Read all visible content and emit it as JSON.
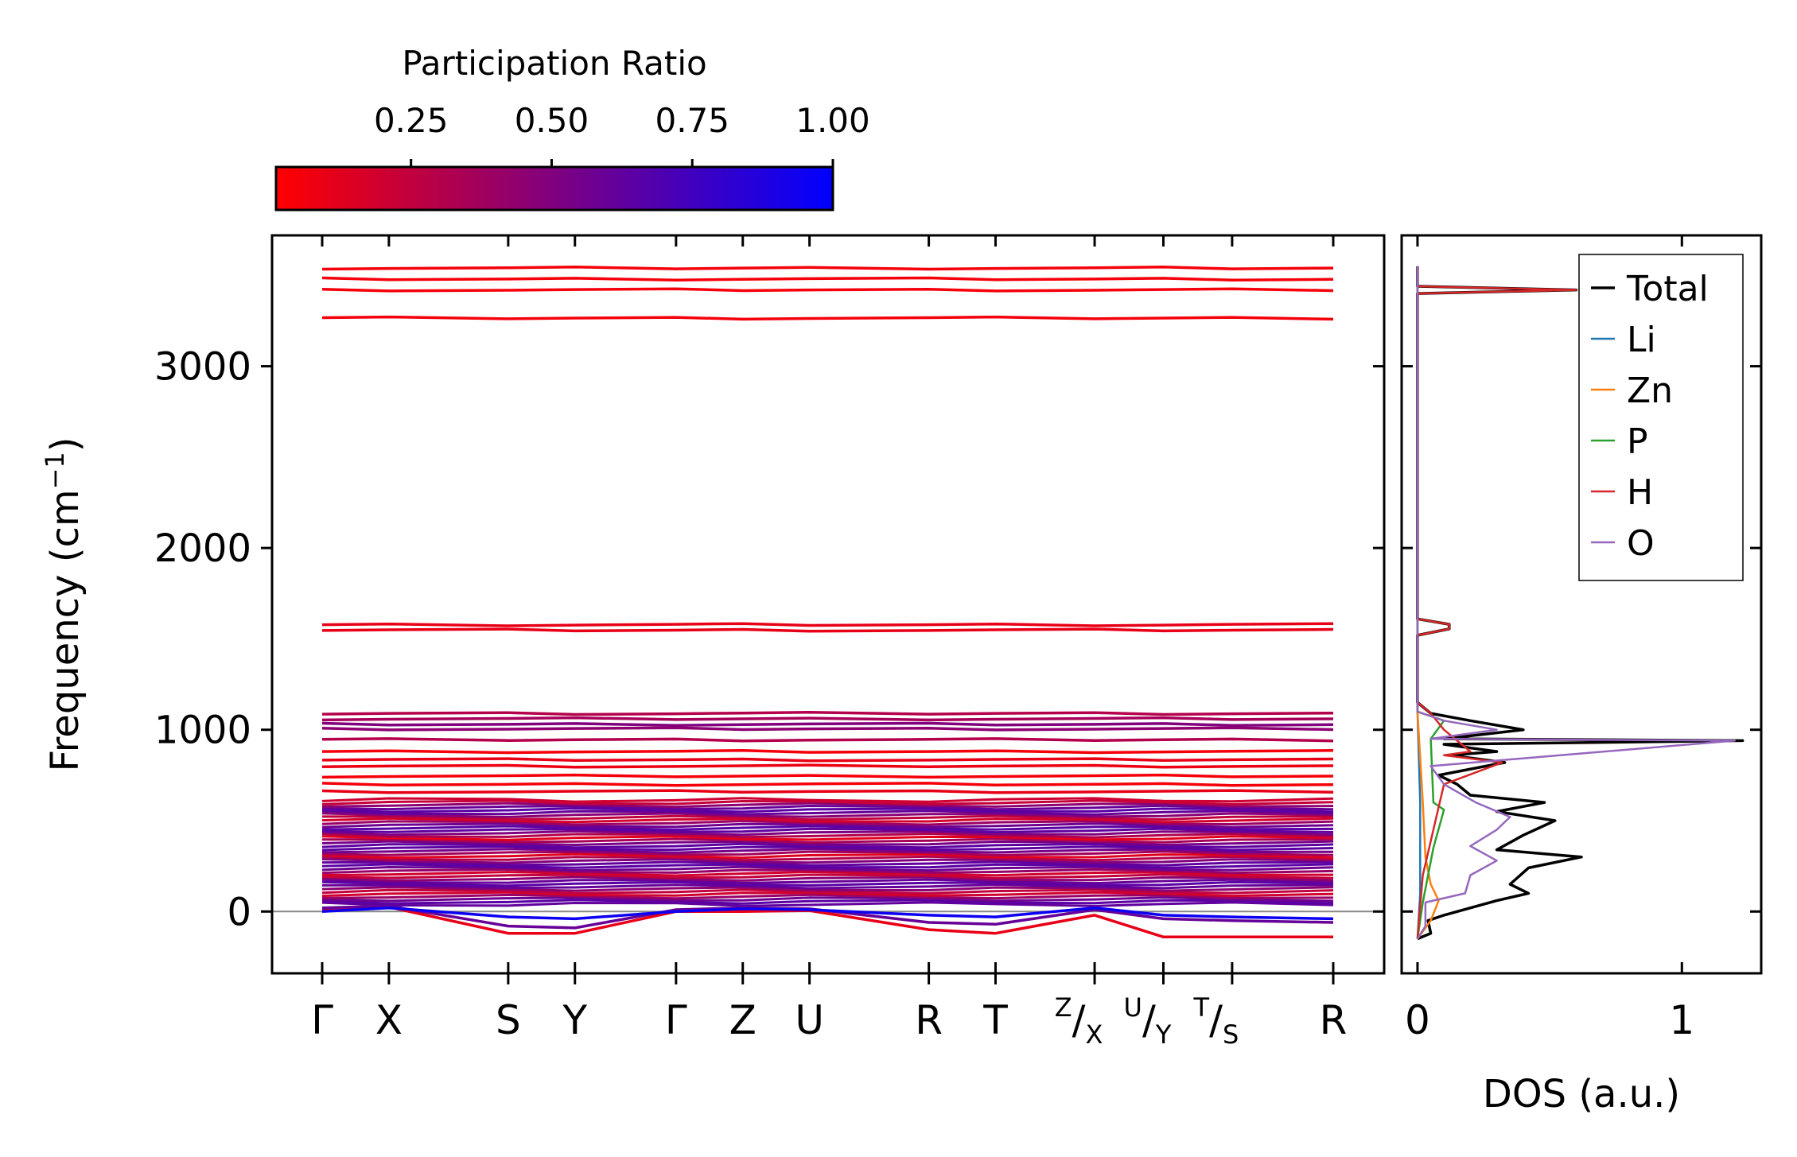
{
  "chart_data": [
    {
      "type": "line",
      "title": "",
      "colorbar": {
        "label": "Participation Ratio",
        "ticks": [
          "0.25",
          "0.50",
          "0.75",
          "1.00"
        ],
        "tick_values": [
          0.25,
          0.5,
          0.75,
          1.0
        ],
        "range": [
          0.01,
          1.0
        ],
        "colors": [
          "#ff0000",
          "#0000ff"
        ]
      },
      "ylabel": "Frequency (cm",
      "ylabel_sup": "−1",
      "ylabel_end": ")",
      "ylim": [
        -340,
        3720
      ],
      "yticks": [
        0,
        1000,
        2000,
        3000
      ],
      "ytick_labels": [
        "0",
        "1000",
        "2000",
        "3000"
      ],
      "kpath_positions": [
        0,
        0.66,
        1.84,
        2.5,
        3.5,
        4.16,
        4.82,
        6.0,
        6.66,
        7.64,
        8.32,
        9.0,
        10.0
      ],
      "kpath_labels": [
        "Γ",
        "X",
        "S",
        "Y",
        "Γ",
        "Z",
        "U",
        "R",
        "T",
        "",
        "",
        "",
        "R"
      ],
      "kpath_combined_labels": [
        {
          "pos": 7.64,
          "sup": "Z",
          "sub": "X"
        },
        {
          "pos": 8.32,
          "sup": "U",
          "sub": "Y"
        },
        {
          "pos": 9.0,
          "sup": "T",
          "sub": "S"
        }
      ],
      "flat_bands": [
        {
          "freq": 3540,
          "pr": 0.05
        },
        {
          "freq": 3480,
          "pr": 0.05
        },
        {
          "freq": 3420,
          "pr": 0.05
        },
        {
          "freq": 3265,
          "pr": 0.05
        },
        {
          "freq": 1578,
          "pr": 0.1
        },
        {
          "freq": 1548,
          "pr": 0.1
        },
        {
          "freq": 1090,
          "pr": 0.3
        },
        {
          "freq": 1060,
          "pr": 0.35
        },
        {
          "freq": 1030,
          "pr": 0.5
        },
        {
          "freq": 1005,
          "pr": 0.45
        },
        {
          "freq": 945,
          "pr": 0.3
        },
        {
          "freq": 880,
          "pr": 0.05
        },
        {
          "freq": 835,
          "pr": 0.1
        },
        {
          "freq": 800,
          "pr": 0.08
        },
        {
          "freq": 745,
          "pr": 0.05
        },
        {
          "freq": 700,
          "pr": 0.05
        },
        {
          "freq": 660,
          "pr": 0.1
        }
      ],
      "dispersive_bands": [
        {
          "points": [
            [
              0,
              10
            ],
            [
              0.66,
              25
            ],
            [
              1.84,
              -120
            ],
            [
              2.5,
              -120
            ],
            [
              3.5,
              0
            ],
            [
              4.16,
              0
            ],
            [
              4.82,
              5
            ],
            [
              6.0,
              -100
            ],
            [
              6.66,
              -120
            ],
            [
              7.64,
              -20
            ],
            [
              8.32,
              -140
            ],
            [
              9.0,
              -140
            ],
            [
              10.0,
              -140
            ]
          ],
          "pr": 0.1
        },
        {
          "points": [
            [
              0,
              20
            ],
            [
              0.66,
              30
            ],
            [
              1.84,
              -80
            ],
            [
              2.5,
              -90
            ],
            [
              3.5,
              10
            ],
            [
              4.16,
              20
            ],
            [
              4.82,
              15
            ],
            [
              6.0,
              -60
            ],
            [
              6.66,
              -70
            ],
            [
              7.64,
              10
            ],
            [
              8.32,
              -40
            ],
            [
              9.0,
              -50
            ],
            [
              10.0,
              -60
            ]
          ],
          "pr": 0.6
        },
        {
          "points": [
            [
              0,
              0
            ],
            [
              0.66,
              20
            ],
            [
              1.84,
              -30
            ],
            [
              2.5,
              -40
            ],
            [
              3.5,
              0
            ],
            [
              4.16,
              15
            ],
            [
              4.82,
              10
            ],
            [
              6.0,
              -20
            ],
            [
              6.66,
              -30
            ],
            [
              7.64,
              20
            ],
            [
              8.32,
              -20
            ],
            [
              9.0,
              -30
            ],
            [
              10.0,
              -40
            ]
          ],
          "pr": 0.95
        }
      ]
    },
    {
      "type": "line",
      "xlabel": "DOS (a.u.)",
      "xlim": [
        -0.06,
        1.3
      ],
      "xticks": [
        0,
        1
      ],
      "xtick_labels": [
        "0",
        "1"
      ],
      "ylim": [
        -340,
        3720
      ],
      "legend_position": "upper-right",
      "series": [
        {
          "name": "Total",
          "color": "#000000",
          "points": [
            [
              0,
              -150
            ],
            [
              0.05,
              -120
            ],
            [
              0.04,
              -50
            ],
            [
              0.1,
              -20
            ],
            [
              0.3,
              60
            ],
            [
              0.42,
              100
            ],
            [
              0.35,
              150
            ],
            [
              0.42,
              240
            ],
            [
              0.62,
              300
            ],
            [
              0.3,
              340
            ],
            [
              0.4,
              420
            ],
            [
              0.52,
              500
            ],
            [
              0.3,
              550
            ],
            [
              0.48,
              600
            ],
            [
              0.2,
              640
            ],
            [
              0.15,
              700
            ],
            [
              0.08,
              750
            ],
            [
              0.33,
              820
            ],
            [
              0.12,
              860
            ],
            [
              0.3,
              880
            ],
            [
              0.1,
              920
            ],
            [
              1.23,
              940
            ],
            [
              0.1,
              950
            ],
            [
              0.4,
              1000
            ],
            [
              0.2,
              1050
            ],
            [
              0.05,
              1090
            ],
            [
              0,
              1150
            ],
            [
              0,
              1520
            ],
            [
              0.12,
              1555
            ],
            [
              0.12,
              1580
            ],
            [
              0,
              1610
            ],
            [
              0,
              3400
            ],
            [
              0.6,
              3420
            ],
            [
              0,
              3440
            ],
            [
              0,
              3550
            ]
          ]
        },
        {
          "name": "Li",
          "color": "#1f77b4",
          "points": [
            [
              0,
              -150
            ],
            [
              0.01,
              100
            ],
            [
              0.01,
              600
            ],
            [
              0,
              1100
            ],
            [
              0,
              3550
            ]
          ]
        },
        {
          "name": "Zn",
          "color": "#ff7f0e",
          "points": [
            [
              0,
              -150
            ],
            [
              0.05,
              -50
            ],
            [
              0.08,
              60
            ],
            [
              0.05,
              150
            ],
            [
              0.03,
              300
            ],
            [
              0.02,
              600
            ],
            [
              0,
              1100
            ],
            [
              0,
              3550
            ]
          ]
        },
        {
          "name": "P",
          "color": "#2ca02c",
          "points": [
            [
              0,
              -150
            ],
            [
              0.02,
              50
            ],
            [
              0.06,
              350
            ],
            [
              0.1,
              560
            ],
            [
              0.06,
              600
            ],
            [
              0.05,
              950
            ],
            [
              0.1,
              1050
            ],
            [
              0,
              1100
            ],
            [
              0,
              3550
            ]
          ]
        },
        {
          "name": "H",
          "color": "#d62728",
          "points": [
            [
              0,
              -150
            ],
            [
              0.02,
              200
            ],
            [
              0.1,
              700
            ],
            [
              0.32,
              820
            ],
            [
              0.1,
              860
            ],
            [
              0.2,
              880
            ],
            [
              0.1,
              1000
            ],
            [
              0.05,
              1090
            ],
            [
              0,
              1150
            ],
            [
              0,
              1520
            ],
            [
              0.12,
              1555
            ],
            [
              0.12,
              1580
            ],
            [
              0,
              1610
            ],
            [
              0,
              3400
            ],
            [
              0.6,
              3420
            ],
            [
              0,
              3440
            ],
            [
              0,
              3550
            ]
          ]
        },
        {
          "name": "O",
          "color": "#9467bd",
          "points": [
            [
              0,
              -150
            ],
            [
              0.03,
              -80
            ],
            [
              0.03,
              50
            ],
            [
              0.18,
              100
            ],
            [
              0.2,
              200
            ],
            [
              0.3,
              280
            ],
            [
              0.2,
              360
            ],
            [
              0.3,
              450
            ],
            [
              0.35,
              520
            ],
            [
              0.22,
              600
            ],
            [
              0.1,
              700
            ],
            [
              0.05,
              800
            ],
            [
              1.2,
              940
            ],
            [
              0.05,
              950
            ],
            [
              0.3,
              1000
            ],
            [
              0.1,
              1050
            ],
            [
              0,
              1100
            ],
            [
              0,
              3550
            ]
          ]
        }
      ]
    }
  ]
}
